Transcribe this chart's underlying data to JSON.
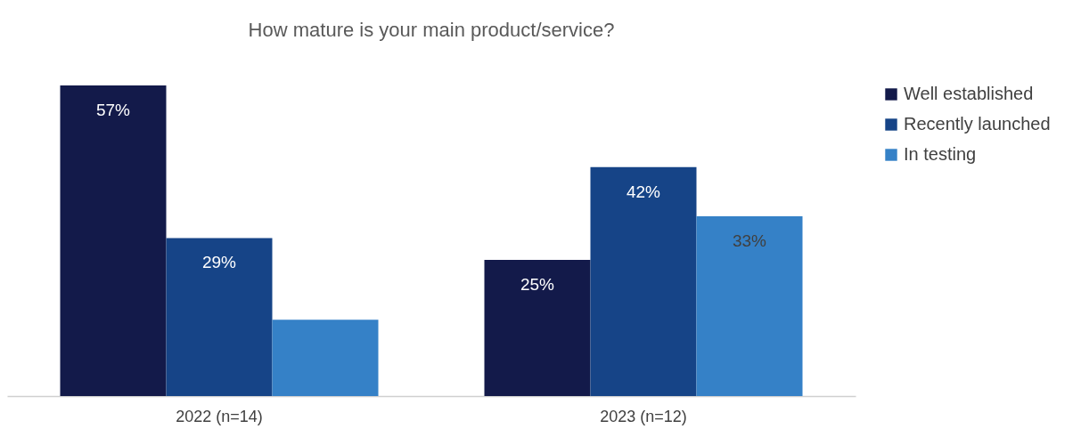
{
  "chart_data": {
    "type": "bar",
    "title": "How mature is your main product/service?",
    "categories": [
      "2022 (n=14)",
      "2023 (n=12)"
    ],
    "series": [
      {
        "name": "Well established",
        "color": "#131a4a",
        "values": [
          57,
          25
        ],
        "value_labels": [
          "57%",
          "25%"
        ]
      },
      {
        "name": "Recently launched",
        "color": "#164487",
        "values": [
          29,
          42
        ],
        "value_labels": [
          "29%",
          "42%"
        ]
      },
      {
        "name": "In testing",
        "color": "#3581c7",
        "values": [
          14,
          33
        ],
        "value_labels": [
          null,
          "33%"
        ]
      }
    ],
    "legend": "right",
    "grid": false
  }
}
